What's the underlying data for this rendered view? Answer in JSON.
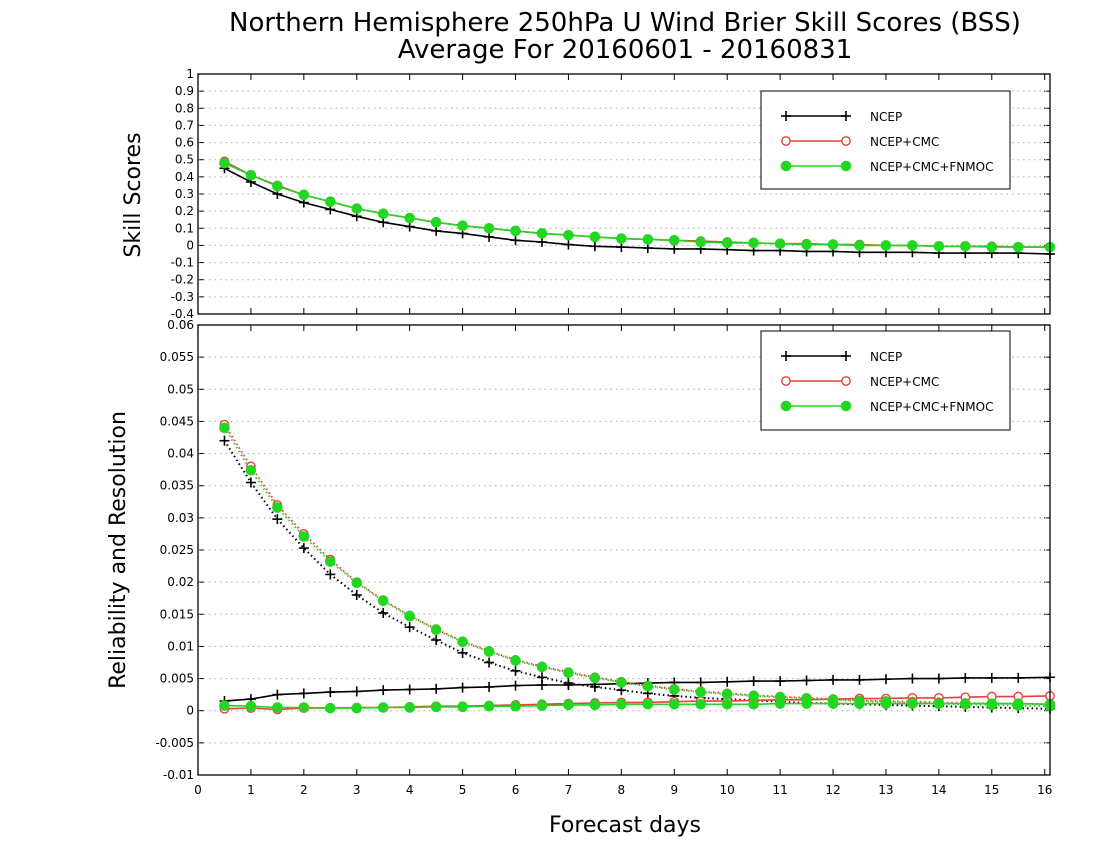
{
  "header": {
    "title_line1": "Northern Hemisphere 250hPa U Wind Brier Skill Scores (BSS)",
    "title_line2": "Average For 20160601 - 20160831"
  },
  "colors": {
    "NCEP": "#000000",
    "NCEP+CMC": "#e8403a",
    "NCEP+CMC+FNMOC": "#22d622",
    "grid": "#aaaaaa"
  },
  "chart_data": [
    {
      "type": "line",
      "panel": "top",
      "ylabel": "Skill Scores",
      "xlabel": "",
      "xlim": [
        0,
        16.1
      ],
      "ylim": [
        -0.4,
        1
      ],
      "yticks": [
        "-0.4",
        "-0.3",
        "-0.2",
        "-0.1",
        "0",
        "0.1",
        "0.2",
        "0.3",
        "0.4",
        "0.5",
        "0.6",
        "0.7",
        "0.8",
        "0.9",
        "1"
      ],
      "grid": true,
      "legend": {
        "position": "top-right",
        "entries": [
          "NCEP",
          "NCEP+CMC",
          "NCEP+CMC+FNMOC"
        ]
      },
      "x": [
        0.5,
        1,
        1.5,
        2,
        2.5,
        3,
        3.5,
        4,
        4.5,
        5,
        5.5,
        6,
        6.5,
        7,
        7.5,
        8,
        8.5,
        9,
        9.5,
        10,
        10.5,
        11,
        11.5,
        12,
        12.5,
        13,
        13.5,
        14,
        14.5,
        15,
        15.5,
        16.1
      ],
      "series": [
        {
          "name": "NCEP",
          "marker": "plus",
          "line": "solid",
          "values": [
            0.45,
            0.37,
            0.3,
            0.25,
            0.21,
            0.17,
            0.135,
            0.11,
            0.085,
            0.07,
            0.05,
            0.03,
            0.02,
            0.005,
            -0.005,
            -0.01,
            -0.015,
            -0.02,
            -0.02,
            -0.025,
            -0.03,
            -0.03,
            -0.035,
            -0.035,
            -0.04,
            -0.04,
            -0.04,
            -0.045,
            -0.045,
            -0.045,
            -0.045,
            -0.05
          ]
        },
        {
          "name": "NCEP+CMC",
          "marker": "open-circle",
          "line": "solid",
          "values": [
            0.49,
            0.41,
            0.35,
            0.295,
            0.255,
            0.215,
            0.185,
            0.16,
            0.135,
            0.115,
            0.1,
            0.085,
            0.07,
            0.06,
            0.05,
            0.04,
            0.035,
            0.03,
            0.025,
            0.02,
            0.015,
            0.01,
            0.01,
            0.005,
            0.005,
            0.0,
            0.0,
            -0.005,
            -0.005,
            -0.005,
            -0.01,
            -0.01
          ]
        },
        {
          "name": "NCEP+CMC+FNMOC",
          "marker": "filled-circle",
          "line": "solid",
          "values": [
            0.48,
            0.41,
            0.345,
            0.295,
            0.255,
            0.215,
            0.185,
            0.16,
            0.135,
            0.115,
            0.1,
            0.085,
            0.07,
            0.06,
            0.05,
            0.04,
            0.035,
            0.03,
            0.02,
            0.015,
            0.015,
            0.01,
            0.005,
            0.005,
            0.0,
            0.0,
            0.0,
            -0.005,
            -0.005,
            -0.01,
            -0.01,
            -0.01
          ]
        }
      ]
    },
    {
      "type": "line",
      "panel": "bottom",
      "ylabel": "Reliability and Resolution",
      "xlabel": "Forecast days",
      "xlim": [
        0,
        16.1
      ],
      "ylim": [
        -0.01,
        0.06
      ],
      "yticks": [
        "-0.01",
        "-0.005",
        "0",
        "0.005",
        "0.01",
        "0.015",
        "0.02",
        "0.025",
        "0.03",
        "0.035",
        "0.04",
        "0.045",
        "0.05",
        "0.055",
        "0.06"
      ],
      "xticks": [
        "0",
        "1",
        "2",
        "3",
        "4",
        "5",
        "6",
        "7",
        "8",
        "9",
        "10",
        "11",
        "12",
        "13",
        "14",
        "15",
        "16"
      ],
      "grid": true,
      "legend": {
        "position": "top-right",
        "entries": [
          "NCEP",
          "NCEP+CMC",
          "NCEP+CMC+FNMOC"
        ]
      },
      "x": [
        0.5,
        1,
        1.5,
        2,
        2.5,
        3,
        3.5,
        4,
        4.5,
        5,
        5.5,
        6,
        6.5,
        7,
        7.5,
        8,
        8.5,
        9,
        9.5,
        10,
        10.5,
        11,
        11.5,
        12,
        12.5,
        13,
        13.5,
        14,
        14.5,
        15,
        15.5,
        16.1
      ],
      "series": [
        {
          "name": "NCEP",
          "kind": "reliability",
          "marker": "plus",
          "line": "solid",
          "values": [
            0.0015,
            0.0018,
            0.0025,
            0.0027,
            0.0029,
            0.003,
            0.0032,
            0.0033,
            0.0034,
            0.0036,
            0.0037,
            0.0039,
            0.004,
            0.004,
            0.0041,
            0.0042,
            0.0043,
            0.0044,
            0.0044,
            0.0045,
            0.0046,
            0.0046,
            0.0047,
            0.0048,
            0.0048,
            0.0049,
            0.005,
            0.005,
            0.0051,
            0.0051,
            0.0051,
            0.0052
          ]
        },
        {
          "name": "NCEP",
          "kind": "resolution",
          "marker": "plus",
          "line": "dotted",
          "values": [
            0.042,
            0.0355,
            0.0298,
            0.0253,
            0.0212,
            0.018,
            0.0152,
            0.013,
            0.011,
            0.009,
            0.0075,
            0.0062,
            0.0052,
            0.0043,
            0.0037,
            0.0032,
            0.0027,
            0.0023,
            0.002,
            0.0018,
            0.0016,
            0.0014,
            0.0012,
            0.0011,
            0.001,
            0.0009,
            0.0008,
            0.0007,
            0.0006,
            0.0005,
            0.0004,
            0.0003
          ]
        },
        {
          "name": "NCEP+CMC",
          "kind": "reliability",
          "marker": "open-circle",
          "line": "solid",
          "values": [
            0.0003,
            0.0004,
            0.0002,
            0.0004,
            0.0004,
            0.0005,
            0.0005,
            0.0006,
            0.0007,
            0.0007,
            0.0008,
            0.0009,
            0.001,
            0.0011,
            0.0012,
            0.0013,
            0.0013,
            0.0014,
            0.0015,
            0.0015,
            0.0016,
            0.0017,
            0.0017,
            0.0018,
            0.0019,
            0.0019,
            0.002,
            0.002,
            0.0021,
            0.0022,
            0.0022,
            0.0023
          ]
        },
        {
          "name": "NCEP+CMC",
          "kind": "resolution",
          "marker": "open-circle",
          "line": "dotted",
          "values": [
            0.0445,
            0.038,
            0.032,
            0.0275,
            0.0235,
            0.02,
            0.0172,
            0.0148,
            0.0127,
            0.0108,
            0.0093,
            0.0079,
            0.0069,
            0.006,
            0.0052,
            0.0045,
            0.0039,
            0.0034,
            0.003,
            0.0027,
            0.0024,
            0.0022,
            0.002,
            0.0018,
            0.0016,
            0.0015,
            0.0014,
            0.0013,
            0.0012,
            0.0011,
            0.0011,
            0.001
          ]
        },
        {
          "name": "NCEP+CMC+FNMOC",
          "kind": "reliability",
          "marker": "filled-circle",
          "line": "solid",
          "values": [
            0.0008,
            0.0007,
            0.0005,
            0.0005,
            0.0004,
            0.0004,
            0.0005,
            0.0005,
            0.0006,
            0.0006,
            0.0007,
            0.0007,
            0.0008,
            0.0009,
            0.0009,
            0.001,
            0.001,
            0.001,
            0.001,
            0.001,
            0.001,
            0.0011,
            0.0011,
            0.0011,
            0.0011,
            0.0011,
            0.0011,
            0.0011,
            0.0011,
            0.0011,
            0.0011,
            0.001
          ]
        },
        {
          "name": "NCEP+CMC+FNMOC",
          "kind": "resolution",
          "marker": "filled-circle",
          "line": "dotted",
          "values": [
            0.044,
            0.0374,
            0.0316,
            0.0271,
            0.0232,
            0.0199,
            0.0171,
            0.0147,
            0.0126,
            0.0107,
            0.0092,
            0.0078,
            0.0068,
            0.0059,
            0.0051,
            0.0044,
            0.0038,
            0.0033,
            0.0029,
            0.0026,
            0.0023,
            0.0021,
            0.0019,
            0.0017,
            0.0015,
            0.0014,
            0.0012,
            0.0011,
            0.001,
            0.0009,
            0.0008,
            0.0007
          ]
        }
      ]
    }
  ]
}
